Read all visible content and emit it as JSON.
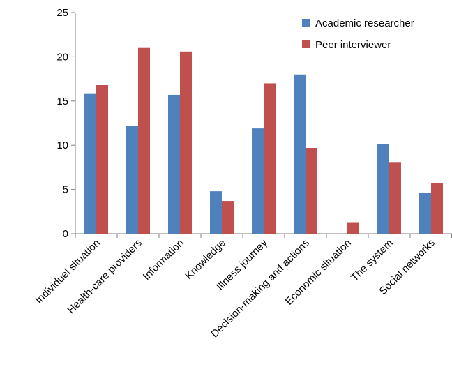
{
  "chart_data": {
    "type": "bar",
    "categories": [
      "Individuel situation",
      "Health-care providers",
      "Information",
      "Knowledge",
      "Illness journey",
      "Decision-making and actions",
      "Economic situation",
      "The system",
      "Social networks"
    ],
    "series": [
      {
        "name": "Academic researcher",
        "color": "#4F81BD",
        "values": [
          15.8,
          12.2,
          15.7,
          4.8,
          11.9,
          18.0,
          0,
          10.1,
          4.6
        ]
      },
      {
        "name": "Peer interviewer",
        "color": "#C0504D",
        "values": [
          16.8,
          21.0,
          20.6,
          3.7,
          17.0,
          9.7,
          1.3,
          8.1,
          5.7
        ]
      }
    ],
    "ylim": [
      0,
      25
    ],
    "yticks": [
      0,
      5,
      10,
      15,
      20,
      25
    ],
    "grid": false,
    "legend_position": "top-right"
  }
}
